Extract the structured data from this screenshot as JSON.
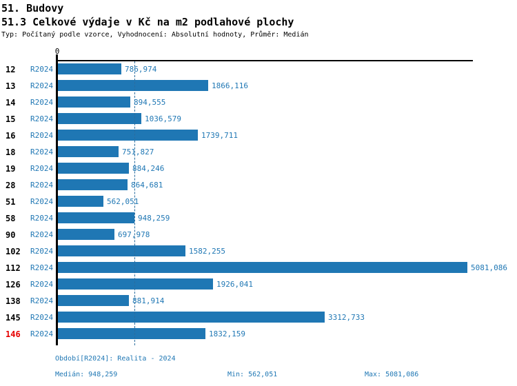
{
  "header": {
    "title": "51. Budovy",
    "subtitle": "51.3 Celkové výdaje v Kč na m2 podlahové plochy",
    "meta": "Typ: Počítaný podle vzorce, Vyhodnocení: Absolutní hodnoty, Průměr: Medián"
  },
  "chart_data": {
    "type": "bar",
    "orientation": "horizontal",
    "title": "51. Budovy",
    "subtitle": "51.3 Celkové výdaje v Kč na m2 podlahové plochy",
    "axis": {
      "origin_tick_label": "0",
      "xlim": [
        0,
        5081.086
      ],
      "grid": false,
      "legend": "none"
    },
    "median_line_value": 948.259,
    "series_label": "R2024",
    "categories": [
      "12",
      "13",
      "14",
      "15",
      "16",
      "18",
      "19",
      "28",
      "51",
      "58",
      "90",
      "102",
      "112",
      "126",
      "138",
      "145",
      "146"
    ],
    "rows": [
      {
        "category": "12",
        "period": "R2024",
        "value": 786.974,
        "value_label": "786,974",
        "highlighted": false
      },
      {
        "category": "13",
        "period": "R2024",
        "value": 1866.116,
        "value_label": "1866,116",
        "highlighted": false
      },
      {
        "category": "14",
        "period": "R2024",
        "value": 894.555,
        "value_label": "894,555",
        "highlighted": false
      },
      {
        "category": "15",
        "period": "R2024",
        "value": 1036.579,
        "value_label": "1036,579",
        "highlighted": false
      },
      {
        "category": "16",
        "period": "R2024",
        "value": 1739.711,
        "value_label": "1739,711",
        "highlighted": false
      },
      {
        "category": "18",
        "period": "R2024",
        "value": 751.827,
        "value_label": "751,827",
        "highlighted": false
      },
      {
        "category": "19",
        "period": "R2024",
        "value": 884.246,
        "value_label": "884,246",
        "highlighted": false
      },
      {
        "category": "28",
        "period": "R2024",
        "value": 864.681,
        "value_label": "864,681",
        "highlighted": false
      },
      {
        "category": "51",
        "period": "R2024",
        "value": 562.051,
        "value_label": "562,051",
        "highlighted": false
      },
      {
        "category": "58",
        "period": "R2024",
        "value": 948.259,
        "value_label": "948,259",
        "highlighted": false
      },
      {
        "category": "90",
        "period": "R2024",
        "value": 697.978,
        "value_label": "697,978",
        "highlighted": false
      },
      {
        "category": "102",
        "period": "R2024",
        "value": 1582.255,
        "value_label": "1582,255",
        "highlighted": false
      },
      {
        "category": "112",
        "period": "R2024",
        "value": 5081.086,
        "value_label": "5081,086",
        "highlighted": false
      },
      {
        "category": "126",
        "period": "R2024",
        "value": 1926.041,
        "value_label": "1926,041",
        "highlighted": false
      },
      {
        "category": "138",
        "period": "R2024",
        "value": 881.914,
        "value_label": "881,914",
        "highlighted": false
      },
      {
        "category": "145",
        "period": "R2024",
        "value": 3312.733,
        "value_label": "3312,733",
        "highlighted": false
      },
      {
        "category": "146",
        "period": "R2024",
        "value": 1832.159,
        "value_label": "1832,159",
        "highlighted": true
      }
    ],
    "colors": {
      "bar": "#1f77b4",
      "label_blue": "#1f77b4",
      "highlight_red": "#e60000",
      "median_line": "#2a6d9e",
      "axis": "#000000"
    }
  },
  "footer": {
    "period_info": "Období[R2024]: Realita - 2024",
    "median": "Medián: 948,259",
    "min": "Min: 562,051",
    "max": "Max: 5081,086"
  }
}
